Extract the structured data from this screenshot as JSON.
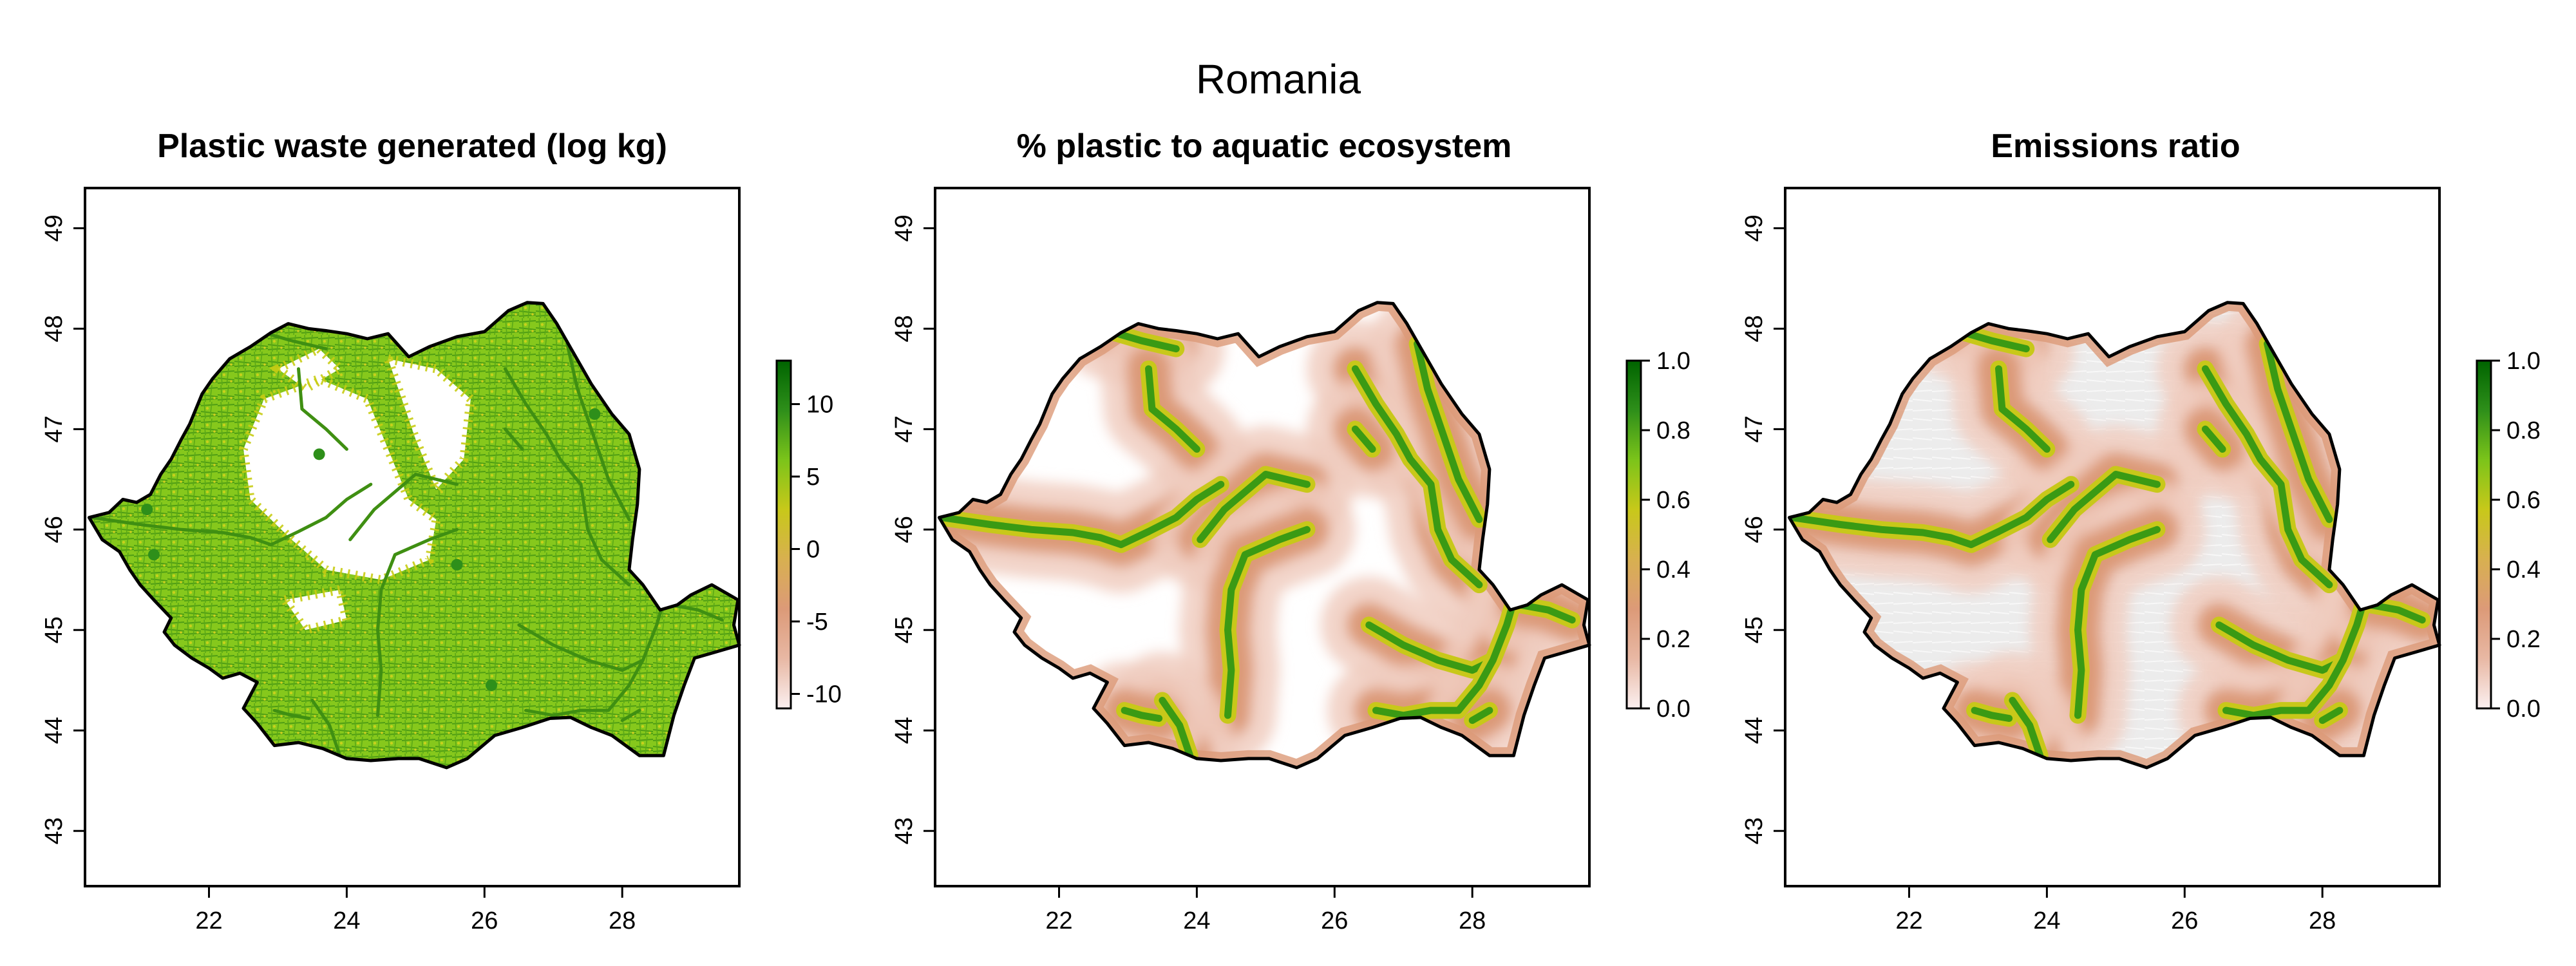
{
  "figure": {
    "title": "Romania",
    "colors": {
      "ramp": [
        "#fbf0f0",
        "#e8b8a4",
        "#dc9a78",
        "#d8b050",
        "#c8c81a",
        "#7cc41a",
        "#2e8f1a",
        "#006400"
      ],
      "land_green": "#7cc618",
      "land_yellow": "#c8cc14",
      "light_grey": "#ececec",
      "outline": "#000000"
    }
  },
  "chart_data": [
    {
      "type": "heatmap",
      "title": "Plastic waste generated (log kg)",
      "xlabel": "",
      "ylabel": "",
      "xlim": [
        20.2,
        29.7
      ],
      "ylim": [
        42.45,
        49.4
      ],
      "x_ticks": [
        22,
        24,
        26,
        28
      ],
      "y_ticks": [
        43,
        44,
        45,
        46,
        47,
        48,
        49
      ],
      "legend": {
        "placement": "right",
        "range": [
          -11,
          13
        ],
        "ticks": [
          -10,
          -5,
          0,
          5,
          10
        ]
      }
    },
    {
      "type": "heatmap",
      "title": "% plastic to aquatic ecosystem",
      "xlabel": "",
      "ylabel": "",
      "xlim": [
        20.2,
        29.7
      ],
      "ylim": [
        42.45,
        49.4
      ],
      "x_ticks": [
        22,
        24,
        26,
        28
      ],
      "y_ticks": [
        43,
        44,
        45,
        46,
        47,
        48,
        49
      ],
      "legend": {
        "placement": "right",
        "range": [
          0,
          1
        ],
        "ticks": [
          "0.0",
          "0.2",
          "0.4",
          "0.6",
          "0.8",
          "1.0"
        ]
      }
    },
    {
      "type": "heatmap",
      "title": "Emissions ratio",
      "xlabel": "",
      "ylabel": "",
      "xlim": [
        20.2,
        29.7
      ],
      "ylim": [
        42.45,
        49.4
      ],
      "x_ticks": [
        22,
        24,
        26,
        28
      ],
      "y_ticks": [
        43,
        44,
        45,
        46,
        47,
        48,
        49
      ],
      "legend": {
        "placement": "right",
        "range": [
          0,
          1
        ],
        "ticks": [
          "0.0",
          "0.2",
          "0.4",
          "0.6",
          "0.8",
          "1.0"
        ]
      }
    }
  ]
}
